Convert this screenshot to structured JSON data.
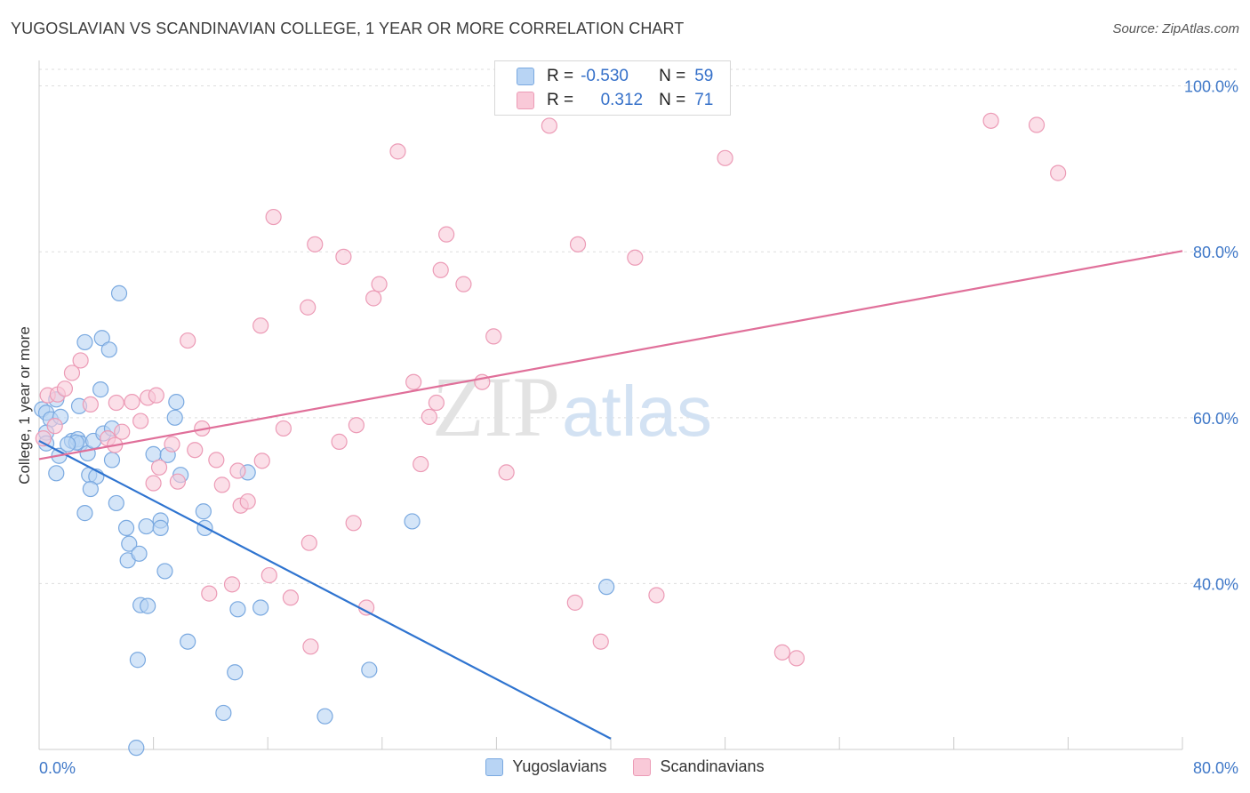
{
  "title": "YUGOSLAVIAN VS SCANDINAVIAN COLLEGE, 1 YEAR OR MORE CORRELATION CHART",
  "source": "Source: ZipAtlas.com",
  "colors": {
    "blue_fill": "#b8d4f4",
    "blue_stroke": "#7aa9e0",
    "blue_line": "#2f74d0",
    "pink_fill": "#f9c9d8",
    "pink_stroke": "#ec9bb6",
    "pink_line": "#e0709a",
    "tick_label": "#3f78c8",
    "grid": "#dddddd"
  },
  "watermark": {
    "zip": "ZIP",
    "atlas": "atlas"
  },
  "legend_top": {
    "rows": [
      {
        "r_label": "R =",
        "r_value": "-0.530",
        "n_label": "N =",
        "n_value": "59"
      },
      {
        "r_label": "R =",
        "r_value": "0.312",
        "n_label": "N =",
        "n_value": "71"
      }
    ]
  },
  "chart_data": {
    "type": "scatter",
    "title": "YUGOSLAVIAN VS SCANDINAVIAN COLLEGE, 1 YEAR OR MORE CORRELATION CHART",
    "xlabel": "",
    "ylabel": "College, 1 year or more",
    "xlim": [
      0,
      80
    ],
    "ylim": [
      20,
      102
    ],
    "x_tick_labels": [
      "0.0%",
      "80.0%"
    ],
    "y_ticks": [
      40,
      60,
      80,
      100
    ],
    "y_tick_labels": [
      "40.0%",
      "60.0%",
      "80.0%",
      "100.0%"
    ],
    "grid": true,
    "legend_placement": "top-center",
    "series": [
      {
        "name": "Yugoslavians",
        "r": -0.53,
        "n": 59,
        "trend": {
          "x": [
            0.0,
            40.0
          ],
          "y": [
            57.2,
            21.3
          ]
        },
        "points": [
          [
            0.2,
            61.0
          ],
          [
            0.5,
            60.6
          ],
          [
            0.8,
            59.8
          ],
          [
            0.5,
            58.2
          ],
          [
            1.2,
            62.2
          ],
          [
            1.5,
            60.1
          ],
          [
            2.3,
            57.2
          ],
          [
            2.7,
            57.4
          ],
          [
            2.9,
            56.9
          ],
          [
            2.6,
            57.0
          ],
          [
            1.4,
            55.4
          ],
          [
            1.2,
            53.3
          ],
          [
            3.4,
            55.7
          ],
          [
            3.8,
            57.2
          ],
          [
            4.5,
            58.1
          ],
          [
            5.1,
            58.7
          ],
          [
            3.5,
            53.1
          ],
          [
            4.0,
            52.9
          ],
          [
            3.6,
            51.4
          ],
          [
            5.1,
            54.9
          ],
          [
            3.2,
            48.5
          ],
          [
            5.4,
            49.7
          ],
          [
            6.1,
            46.7
          ],
          [
            6.3,
            44.8
          ],
          [
            6.2,
            42.8
          ],
          [
            7.0,
            43.6
          ],
          [
            7.5,
            46.9
          ],
          [
            8.5,
            47.6
          ],
          [
            8.5,
            46.7
          ],
          [
            8.8,
            41.5
          ],
          [
            7.1,
            37.4
          ],
          [
            7.6,
            37.3
          ],
          [
            6.9,
            30.8
          ],
          [
            10.4,
            33.0
          ],
          [
            11.5,
            48.7
          ],
          [
            11.6,
            46.7
          ],
          [
            13.9,
            36.9
          ],
          [
            15.5,
            37.1
          ],
          [
            13.7,
            29.3
          ],
          [
            12.9,
            24.4
          ],
          [
            20.0,
            24.0
          ],
          [
            23.1,
            29.6
          ],
          [
            26.1,
            47.5
          ],
          [
            39.7,
            39.6
          ],
          [
            6.8,
            20.2
          ],
          [
            5.6,
            75.0
          ],
          [
            3.2,
            69.1
          ],
          [
            4.4,
            69.6
          ],
          [
            4.9,
            68.2
          ],
          [
            4.3,
            63.4
          ],
          [
            2.8,
            61.4
          ],
          [
            9.6,
            61.9
          ],
          [
            9.5,
            60.0
          ],
          [
            8.0,
            55.6
          ],
          [
            9.0,
            55.5
          ],
          [
            9.9,
            53.1
          ],
          [
            14.6,
            53.4
          ],
          [
            2.0,
            56.8
          ],
          [
            0.5,
            56.9
          ]
        ]
      },
      {
        "name": "Scandinavians",
        "r": 0.312,
        "n": 71,
        "trend": {
          "x": [
            0.0,
            80.0
          ],
          "y": [
            55.0,
            80.1
          ]
        },
        "points": [
          [
            0.3,
            57.5
          ],
          [
            0.6,
            62.7
          ],
          [
            1.3,
            62.8
          ],
          [
            1.8,
            63.5
          ],
          [
            2.3,
            65.4
          ],
          [
            2.9,
            66.9
          ],
          [
            1.1,
            59.0
          ],
          [
            4.8,
            57.5
          ],
          [
            5.3,
            56.7
          ],
          [
            5.8,
            58.3
          ],
          [
            3.6,
            61.6
          ],
          [
            5.4,
            61.8
          ],
          [
            6.5,
            61.9
          ],
          [
            7.1,
            59.6
          ],
          [
            7.6,
            62.4
          ],
          [
            8.2,
            62.7
          ],
          [
            8.4,
            54.0
          ],
          [
            9.3,
            56.8
          ],
          [
            9.7,
            52.3
          ],
          [
            10.9,
            56.1
          ],
          [
            11.4,
            58.7
          ],
          [
            12.4,
            54.9
          ],
          [
            12.8,
            51.9
          ],
          [
            13.9,
            53.6
          ],
          [
            14.1,
            49.4
          ],
          [
            14.6,
            49.9
          ],
          [
            15.6,
            54.8
          ],
          [
            16.1,
            41.0
          ],
          [
            17.6,
            38.3
          ],
          [
            17.1,
            58.7
          ],
          [
            18.9,
            44.9
          ],
          [
            19.0,
            32.4
          ],
          [
            21.0,
            57.1
          ],
          [
            22.0,
            47.3
          ],
          [
            22.2,
            59.1
          ],
          [
            22.9,
            37.1
          ],
          [
            8.0,
            52.1
          ],
          [
            11.9,
            38.8
          ],
          [
            13.5,
            39.9
          ],
          [
            10.4,
            69.3
          ],
          [
            15.5,
            71.1
          ],
          [
            16.4,
            84.2
          ],
          [
            18.8,
            73.3
          ],
          [
            19.3,
            80.9
          ],
          [
            21.3,
            79.4
          ],
          [
            23.4,
            74.4
          ],
          [
            23.8,
            76.1
          ],
          [
            25.1,
            92.1
          ],
          [
            26.2,
            64.3
          ],
          [
            26.7,
            54.4
          ],
          [
            27.3,
            60.1
          ],
          [
            27.8,
            61.8
          ],
          [
            28.1,
            77.8
          ],
          [
            28.5,
            82.1
          ],
          [
            29.7,
            76.1
          ],
          [
            31.0,
            64.3
          ],
          [
            31.8,
            69.8
          ],
          [
            32.7,
            53.4
          ],
          [
            35.7,
            95.2
          ],
          [
            37.7,
            80.9
          ],
          [
            37.5,
            37.7
          ],
          [
            39.3,
            33.0
          ],
          [
            41.7,
            79.3
          ],
          [
            43.2,
            38.6
          ],
          [
            45.2,
            99.6
          ],
          [
            48.0,
            91.3
          ],
          [
            52.0,
            31.7
          ],
          [
            53.0,
            31.0
          ],
          [
            66.6,
            95.8
          ],
          [
            69.8,
            95.3
          ],
          [
            71.3,
            89.5
          ]
        ]
      }
    ]
  },
  "legend_bottom": [
    {
      "label": "Yugoslavians"
    },
    {
      "label": "Scandinavians"
    }
  ]
}
